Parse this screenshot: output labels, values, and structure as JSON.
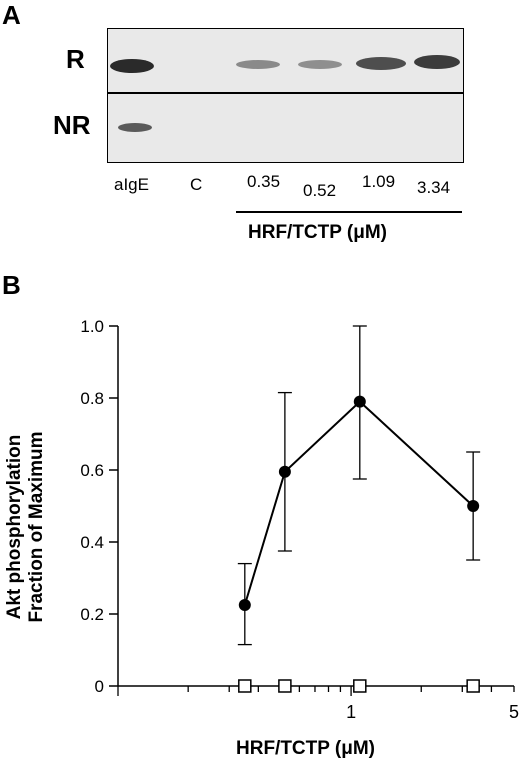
{
  "panelA": {
    "letter": "A",
    "row_labels": [
      "R",
      "NR"
    ],
    "lanes": [
      "aIgE",
      "C",
      "0.35",
      "0.52",
      "1.09",
      "3.34"
    ],
    "group_label": "HRF/TCTP (μM)"
  },
  "panelB": {
    "letter": "B",
    "ylabel_line1": "Akt phosphorylation",
    "ylabel_line2": "Fraction of Maximum",
    "xlabel": "HRF/TCTP (μM)"
  },
  "chart_data": {
    "type": "scatter",
    "title": "",
    "xlabel": "HRF/TCTP (μM)",
    "ylabel": "Akt phosphorylation Fraction of Maximum",
    "x_scale": "log",
    "xlim": [
      0.1,
      5
    ],
    "ylim": [
      0,
      1.0
    ],
    "x_ticks": [
      "1",
      "5"
    ],
    "y_ticks": [
      "0",
      "0.2",
      "0.4",
      "0.6",
      "0.8",
      "1.0"
    ],
    "grid": false,
    "series": [
      {
        "marker": "filled-circle",
        "line": true,
        "x": [
          0.35,
          0.52,
          1.09,
          3.34
        ],
        "y": [
          0.225,
          0.595,
          0.79,
          0.5
        ],
        "err_low": [
          0.11,
          0.22,
          0.215,
          0.15
        ],
        "err_high": [
          0.115,
          0.22,
          0.21,
          0.15
        ]
      },
      {
        "marker": "open-square",
        "line": false,
        "x": [
          0.35,
          0.52,
          1.09,
          3.34
        ],
        "y": [
          0,
          0,
          0,
          0
        ]
      }
    ]
  }
}
